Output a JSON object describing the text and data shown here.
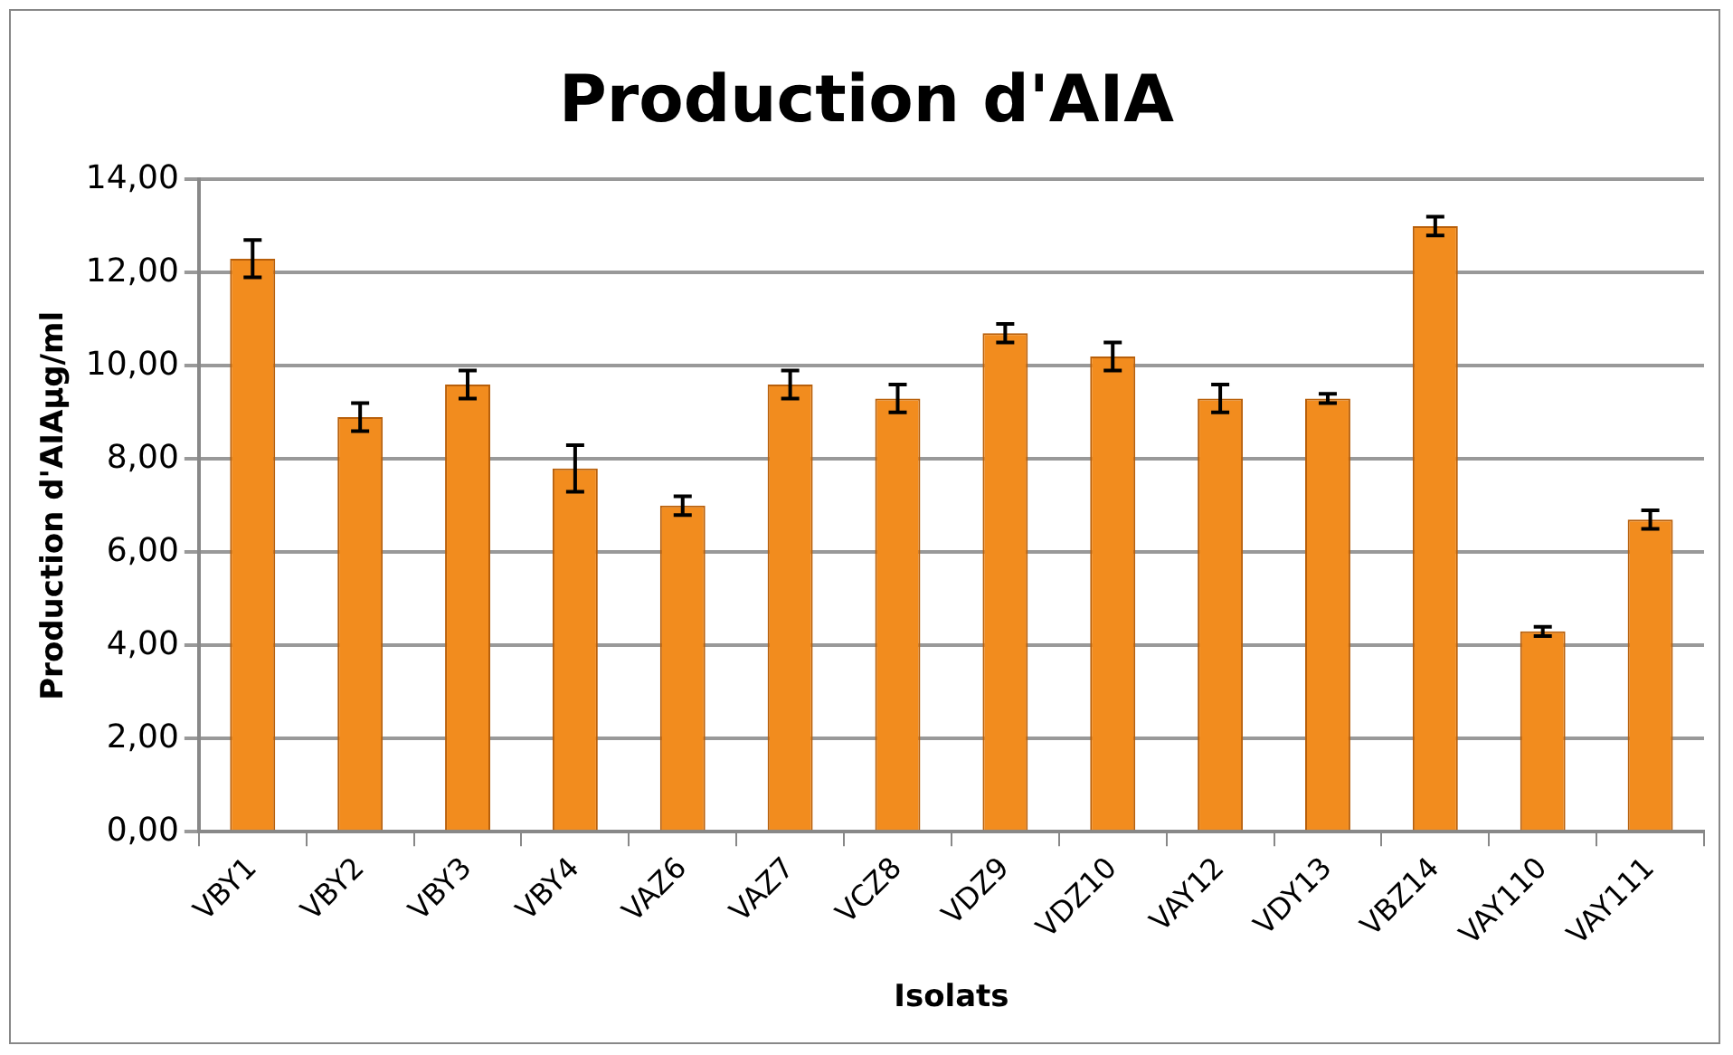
{
  "chart_data": {
    "type": "bar",
    "title": "Production d'AIA",
    "xlabel": "Isolats",
    "ylabel": "Production d'AIAµg/ml",
    "categories": [
      "VBY1",
      "VBY2",
      "VBY3",
      "VBY4",
      "VAZ6",
      "VAZ7",
      "VCZ8",
      "VDZ9",
      "VDZ10",
      "VAY12",
      "VDY13",
      "VBZ14",
      "VAY110",
      "VAY111"
    ],
    "values": [
      12.3,
      8.9,
      9.6,
      7.8,
      7.0,
      9.6,
      9.3,
      10.7,
      10.2,
      9.3,
      9.3,
      13.0,
      4.3,
      6.7
    ],
    "errors": [
      0.4,
      0.3,
      0.3,
      0.5,
      0.2,
      0.3,
      0.3,
      0.2,
      0.3,
      0.3,
      0.1,
      0.2,
      0.1,
      0.2
    ],
    "color": "#f28c1e",
    "ylim": [
      0,
      14
    ],
    "yticks": [
      {
        "value": 0,
        "label": "0,00"
      },
      {
        "value": 2,
        "label": "2,00"
      },
      {
        "value": 4,
        "label": "4,00"
      },
      {
        "value": 6,
        "label": "6,00"
      },
      {
        "value": 8,
        "label": "8,00"
      },
      {
        "value": 10,
        "label": "10,00"
      },
      {
        "value": 12,
        "label": "12,00"
      },
      {
        "value": 14,
        "label": "14,00"
      }
    ],
    "grid": "y",
    "legend": false
  }
}
